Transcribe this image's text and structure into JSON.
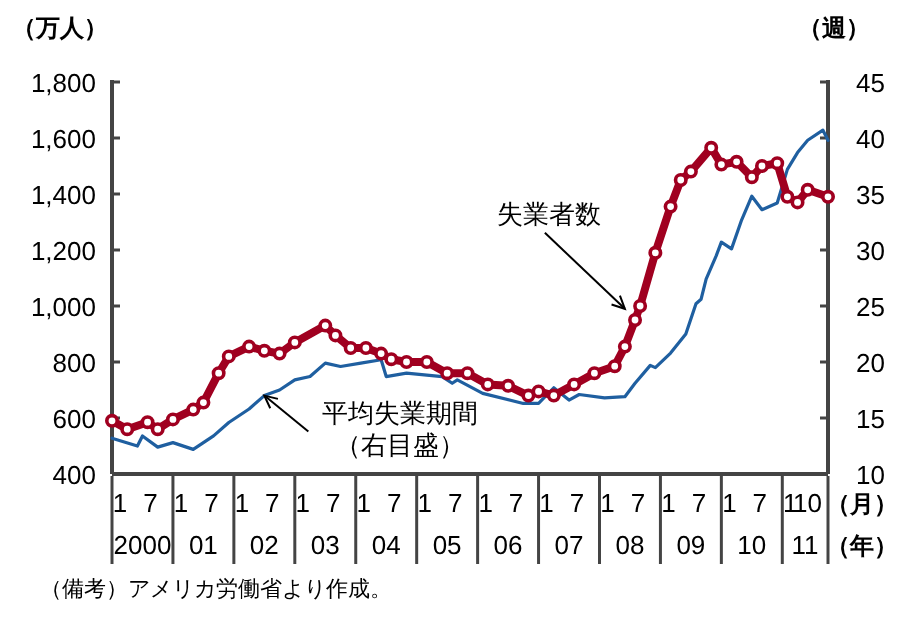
{
  "chart_data": {
    "type": "line",
    "ylabel": "（万人）",
    "y2label": "（週）",
    "xlabel": "（月）",
    "x2label": "（年）",
    "x2lim": [
      "2000-01",
      "2011-10"
    ],
    "xlim": [
      "2000-01",
      "2011-10"
    ],
    "ylim": [
      400,
      1800
    ],
    "yticks": [
      400,
      600,
      800,
      {
        "value": 1000,
        "label": "1,000"
      },
      {
        "value": 1200,
        "label": "1,200"
      },
      {
        "value": 1400,
        "label": "1,400"
      },
      {
        "value": 1600,
        "label": "1,600"
      },
      {
        "value": 1800,
        "label": "1,800"
      }
    ],
    "y2lim": [
      10,
      45
    ],
    "y2ticks": [
      10,
      15,
      20,
      25,
      30,
      35,
      40,
      45
    ],
    "xticks": [
      {
        "value": "2000-01",
        "label": "1"
      },
      {
        "value": "2000-07",
        "label": "7"
      },
      {
        "value": "2001-01",
        "label": "1"
      },
      {
        "value": "2001-07",
        "label": "7"
      },
      {
        "value": "2002-01",
        "label": "1"
      },
      {
        "value": "2002-07",
        "label": "7"
      },
      {
        "value": "2003-01",
        "label": "1"
      },
      {
        "value": "2003-07",
        "label": "7"
      },
      {
        "value": "2004-01",
        "label": "1"
      },
      {
        "value": "2004-07",
        "label": "7"
      },
      {
        "value": "2005-01",
        "label": "1"
      },
      {
        "value": "2005-07",
        "label": "7"
      },
      {
        "value": "2006-01",
        "label": "1"
      },
      {
        "value": "2006-07",
        "label": "7"
      },
      {
        "value": "2007-01",
        "label": "1"
      },
      {
        "value": "2007-07",
        "label": "7"
      },
      {
        "value": "2008-01",
        "label": "1"
      },
      {
        "value": "2008-07",
        "label": "7"
      },
      {
        "value": "2009-01",
        "label": "1"
      },
      {
        "value": "2009-07",
        "label": "7"
      },
      {
        "value": "2010-01",
        "label": "1"
      },
      {
        "value": "2010-07",
        "label": "7"
      },
      {
        "value": "2011-01",
        "label": "1"
      },
      {
        "value": "2011-10",
        "label": "10"
      }
    ],
    "x2ticks": [
      {
        "value": "2000-07",
        "label": "2000"
      },
      {
        "value": "2001-07",
        "label": "01"
      },
      {
        "value": "2002-07",
        "label": "02"
      },
      {
        "value": "2003-07",
        "label": "03"
      },
      {
        "value": "2004-07",
        "label": "04"
      },
      {
        "value": "2005-07",
        "label": "05"
      },
      {
        "value": "2006-07",
        "label": "06"
      },
      {
        "value": "2007-07",
        "label": "07"
      },
      {
        "value": "2008-07",
        "label": "08"
      },
      {
        "value": "2009-07",
        "label": "09"
      },
      {
        "value": "2010-07",
        "label": "10"
      },
      {
        "value": "2011-05-16",
        "label": "11"
      }
    ],
    "series": [
      {
        "color": "#a00020",
        "marker": "circle",
        "x": [
          "2000-01",
          "2000-04",
          "2000-08",
          "2000-10",
          "2001-01",
          "2001-05",
          "2001-07",
          "2001-10",
          "2001-12",
          "2002-04",
          "2002-07",
          "2002-10",
          "2003-01",
          "2003-07",
          "2003-09",
          "2003-12",
          "2004-03",
          "2004-06",
          "2004-08",
          "2004-11",
          "2005-03",
          "2005-07",
          "2005-11",
          "2006-03",
          "2006-07",
          "2006-11",
          "2007-01",
          "2007-04",
          "2007-08",
          "2007-12",
          "2008-04",
          "2008-06",
          "2008-08",
          "2008-09",
          "2008-12",
          "2009-03",
          "2009-05",
          "2009-07",
          "2009-11",
          "2010-01",
          "2010-04",
          "2010-07",
          "2010-09",
          "2010-12",
          "2011-02",
          "2011-04",
          "2011-06",
          "2011-10"
        ],
        "values": [
          590,
          560,
          585,
          560,
          595,
          630,
          655,
          760,
          820,
          855,
          840,
          830,
          870,
          930,
          895,
          850,
          850,
          830,
          810,
          800,
          800,
          760,
          760,
          720,
          715,
          680,
          695,
          680,
          720,
          760,
          785,
          855,
          950,
          1000,
          1190,
          1355,
          1450,
          1480,
          1565,
          1505,
          1515,
          1460,
          1500,
          1510,
          1390,
          1370,
          1415,
          1390
        ]
      },
      {
        "color": "#1f5fa0",
        "axis": "y2",
        "x": [
          "2000-01",
          "2000-06",
          "2000-07",
          "2000-10",
          "2001-01",
          "2001-05",
          "2001-09",
          "2001-12",
          "2002-04",
          "2002-07",
          "2002-10",
          "2003-01",
          "2003-04",
          "2003-07",
          "2003-10",
          "2004-02",
          "2004-06",
          "2004-07",
          "2004-11",
          "2005-06",
          "2005-08",
          "2005-09",
          "2006-02",
          "2006-10",
          "2007-01",
          "2007-04",
          "2007-07",
          "2007-09",
          "2008-02",
          "2008-06",
          "2008-08",
          "2008-11",
          "2008-12",
          "2009-03",
          "2009-06",
          "2009-08",
          "2009-09",
          "2009-10",
          "2009-12",
          "2010-01",
          "2010-03",
          "2010-05",
          "2010-07",
          "2010-09",
          "2010-12",
          "2011-02",
          "2011-04",
          "2011-06",
          "2011-09",
          "2011-10"
        ],
        "values": [
          13.2,
          12.5,
          13.4,
          12.4,
          12.8,
          12.2,
          13.4,
          14.6,
          15.8,
          17,
          17.5,
          18.4,
          18.7,
          19.9,
          19.6,
          19.9,
          20.2,
          18.7,
          19,
          18.7,
          18.1,
          18.4,
          17.2,
          16.3,
          16.3,
          17.7,
          16.6,
          17.1,
          16.8,
          16.9,
          18.1,
          19.7,
          19.5,
          20.8,
          22.5,
          25.2,
          25.6,
          27.4,
          29.5,
          30.7,
          30.1,
          32.7,
          34.8,
          33.6,
          34.2,
          37.2,
          38.7,
          39.8,
          40.7,
          39.8
        ]
      }
    ],
    "annotations": [
      {
        "text": "失業者数",
        "x": "2008-06",
        "y": 990
      },
      {
        "text": "平均失業期間（右目盛）",
        "x": "2002-07",
        "y": 680
      },
      "（備考）アメリカ労働省より作成。"
    ]
  }
}
